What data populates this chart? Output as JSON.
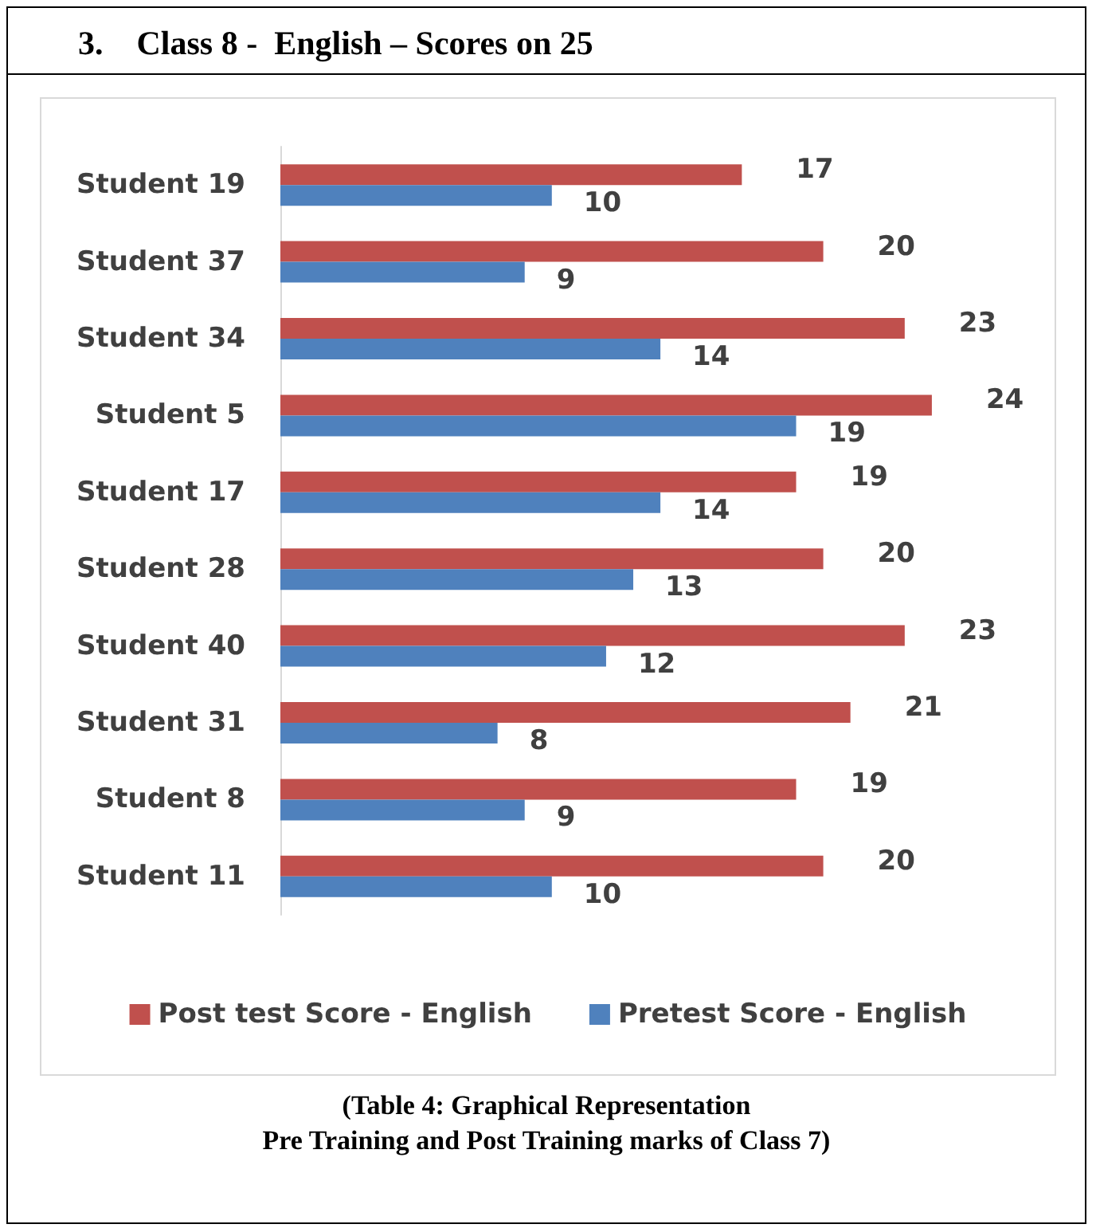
{
  "chart_data": {
    "type": "bar",
    "orientation": "horizontal",
    "title": "3.    Class 8 -  English – Scores on 25",
    "categories": [
      "Student 19",
      "Student 37",
      "Student 34",
      "Student 5",
      "Student 17",
      "Student 28",
      "Student 40",
      "Student 31",
      "Student 8",
      "Student 11"
    ],
    "series": [
      {
        "name": "Post test Score - English",
        "color": "#c0504d",
        "values": [
          17,
          20,
          23,
          24,
          19,
          20,
          23,
          21,
          19,
          20
        ]
      },
      {
        "name": "Pretest Score - English",
        "color": "#4f81bd",
        "values": [
          10,
          9,
          14,
          19,
          14,
          13,
          12,
          8,
          9,
          10
        ]
      }
    ],
    "data_labels": true,
    "grid": false,
    "legend": "bottom",
    "tick_labels": "y",
    "annotations": [
      "(Table 4: Graphical Representation",
      "Pre Training and Post Training marks of Class 7)"
    ]
  }
}
